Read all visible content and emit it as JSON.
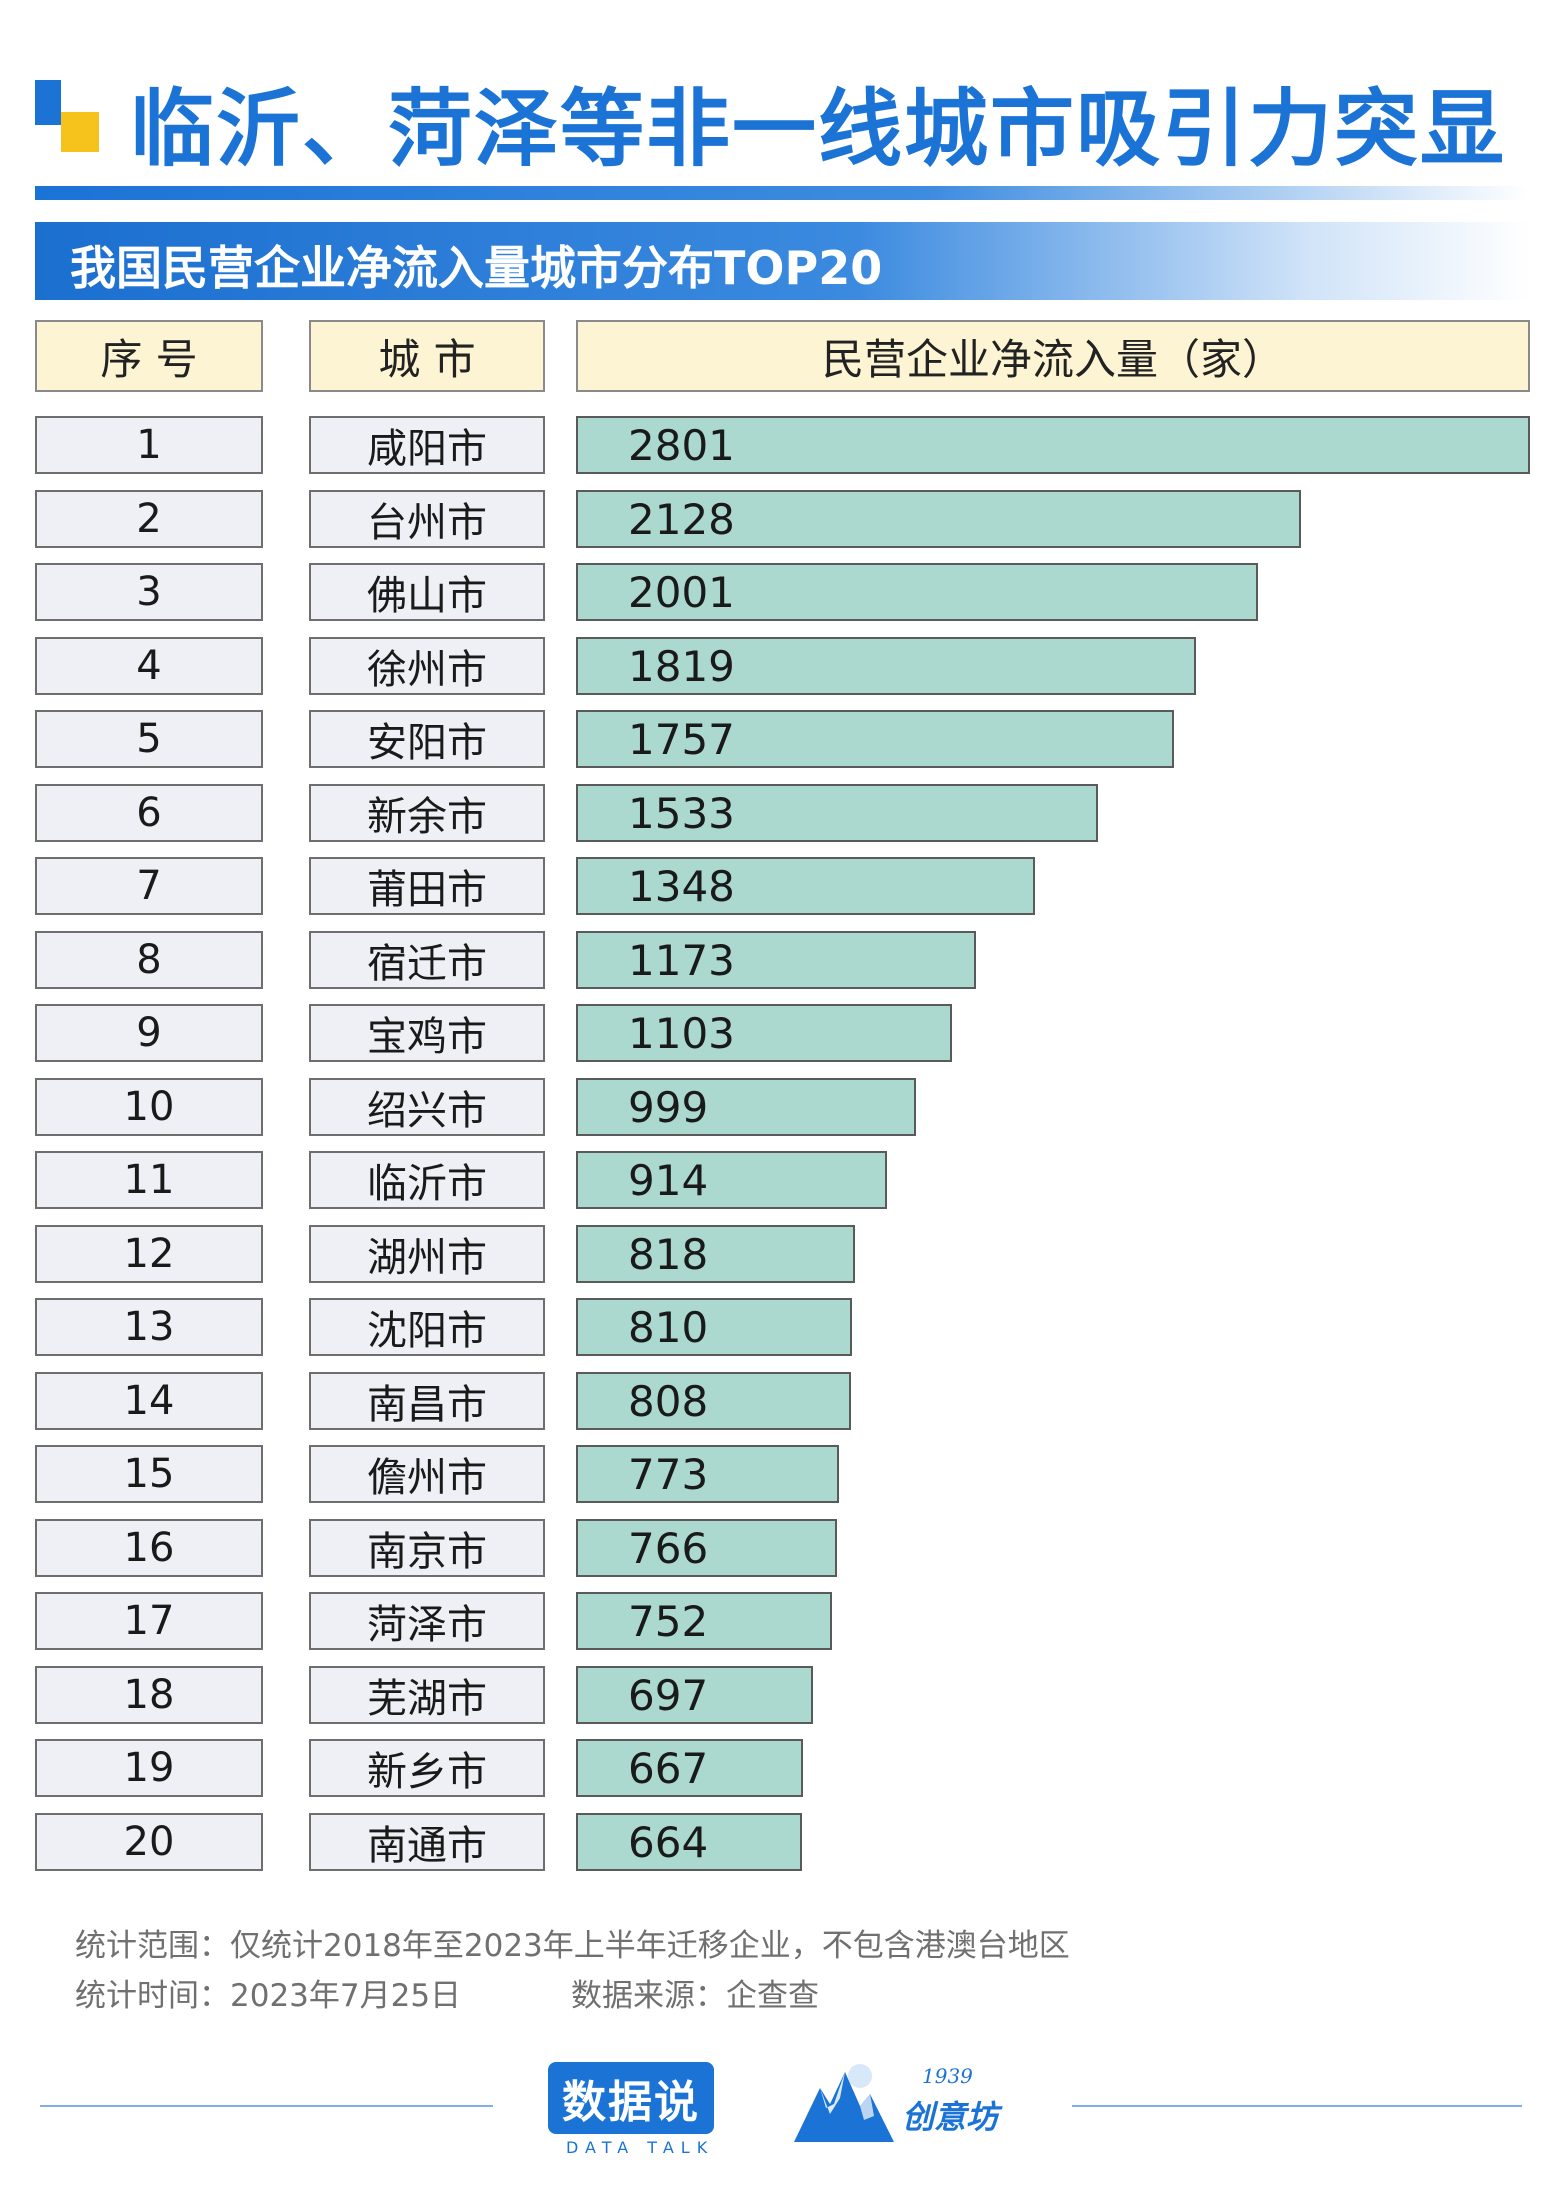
{
  "title": "临沂、菏泽等非一线城市吸引力突显",
  "subtitle": "我国民营企业净流入量城市分布TOP20",
  "headers": {
    "rank": "序 号",
    "city": "城 市",
    "value": "民营企业净流入量（家）"
  },
  "chart_data": {
    "type": "bar",
    "orientation": "horizontal",
    "title": "我国民营企业净流入量城市分布TOP20",
    "ylabel": "民营企业净流入量（家）",
    "xlim": [
      0,
      2801
    ],
    "ranks": [
      "1",
      "2",
      "3",
      "4",
      "5",
      "6",
      "7",
      "8",
      "9",
      "10",
      "11",
      "12",
      "13",
      "14",
      "15",
      "16",
      "17",
      "18",
      "19",
      "20"
    ],
    "categories": [
      "咸阳市",
      "台州市",
      "佛山市",
      "徐州市",
      "安阳市",
      "新余市",
      "莆田市",
      "宿迁市",
      "宝鸡市",
      "绍兴市",
      "临沂市",
      "湖州市",
      "沈阳市",
      "南昌市",
      "儋州市",
      "南京市",
      "菏泽市",
      "芜湖市",
      "新乡市",
      "南通市"
    ],
    "values": [
      2801,
      2128,
      2001,
      1819,
      1757,
      1533,
      1348,
      1173,
      1103,
      999,
      914,
      818,
      810,
      808,
      773,
      766,
      752,
      697,
      667,
      664
    ],
    "bar_color": "#abd9cf"
  },
  "footnotes": {
    "scope": "统计范围：仅统计2018年至2023年上半年迁移企业，不包含港澳台地区",
    "time": "统计时间：2023年7月25日",
    "source": "数据来源：企查查"
  },
  "logos": {
    "datatalk_cn": "数据说",
    "datatalk_en": "DATA TALK",
    "studio_year": "1939",
    "studio_name": "创意坊"
  },
  "colors": {
    "brand_blue": "#1b73d6",
    "accent_yellow": "#f6c21c",
    "header_fill": "#fcf4d2",
    "cell_fill": "#eef0f5"
  }
}
